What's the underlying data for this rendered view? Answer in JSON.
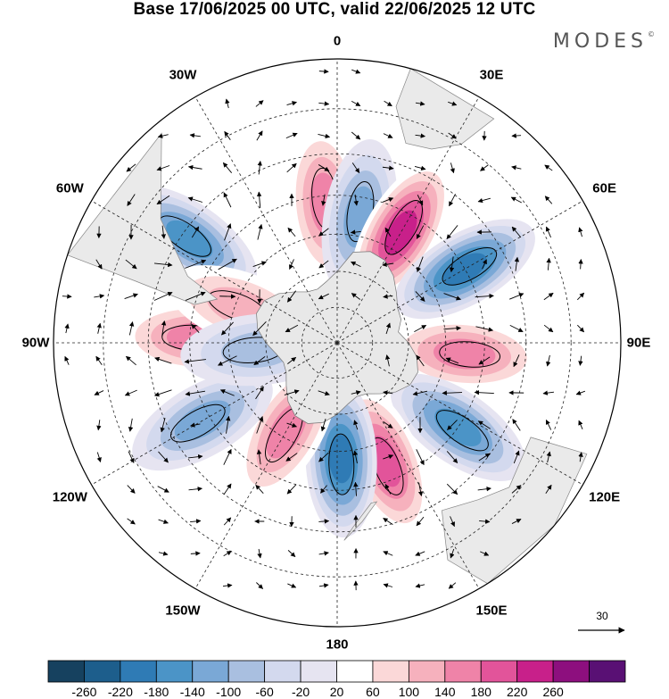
{
  "title": "Base 17/06/2025 00 UTC, valid 22/06/2025 12 UTC",
  "brand": "MODES",
  "brand_mark": "©",
  "longitude_labels": [
    "0",
    "30E",
    "60E",
    "90E",
    "120E",
    "150E",
    "180",
    "150W",
    "120W",
    "90W",
    "60W",
    "30W"
  ],
  "reference_vector": {
    "label": "30"
  },
  "colorbar": {
    "ticks": [
      "-260",
      "-220",
      "-180",
      "-140",
      "-100",
      "-60",
      "-20",
      "20",
      "60",
      "100",
      "140",
      "180",
      "220",
      "260"
    ],
    "colors": [
      "#16415f",
      "#1d5e8c",
      "#2f7bb5",
      "#4b94c7",
      "#7aa8d6",
      "#a9bfe0",
      "#d3d9ee",
      "#e6e4f1",
      "#ffffff",
      "#fbd8d8",
      "#f6b1bd",
      "#ef83a8",
      "#e2549a",
      "#c8208a",
      "#8d0f7e",
      "#591074"
    ]
  },
  "map_data": {
    "projection": "south-polar-stereographic",
    "field": "anomaly",
    "anomaly_centers": [
      {
        "lon": -5,
        "lat": -52,
        "value": 140
      },
      {
        "lon": 10,
        "lat": -55,
        "value": -140
      },
      {
        "lon": 30,
        "lat": -55,
        "value": 200
      },
      {
        "lon": 60,
        "lat": -50,
        "value": -220
      },
      {
        "lon": 95,
        "lat": -55,
        "value": 150
      },
      {
        "lon": 125,
        "lat": -50,
        "value": -180
      },
      {
        "lon": 158,
        "lat": -55,
        "value": 180
      },
      {
        "lon": 178,
        "lat": -58,
        "value": -200
      },
      {
        "lon": -150,
        "lat": -62,
        "value": 120
      },
      {
        "lon": -120,
        "lat": -48,
        "value": -140
      },
      {
        "lon": -88,
        "lat": -52,
        "value": 150
      },
      {
        "lon": -55,
        "lat": -42,
        "value": -170
      },
      {
        "lon": -70,
        "lat": -62,
        "value": 90
      },
      {
        "lon": -95,
        "lat": -68,
        "value": -80
      }
    ]
  }
}
